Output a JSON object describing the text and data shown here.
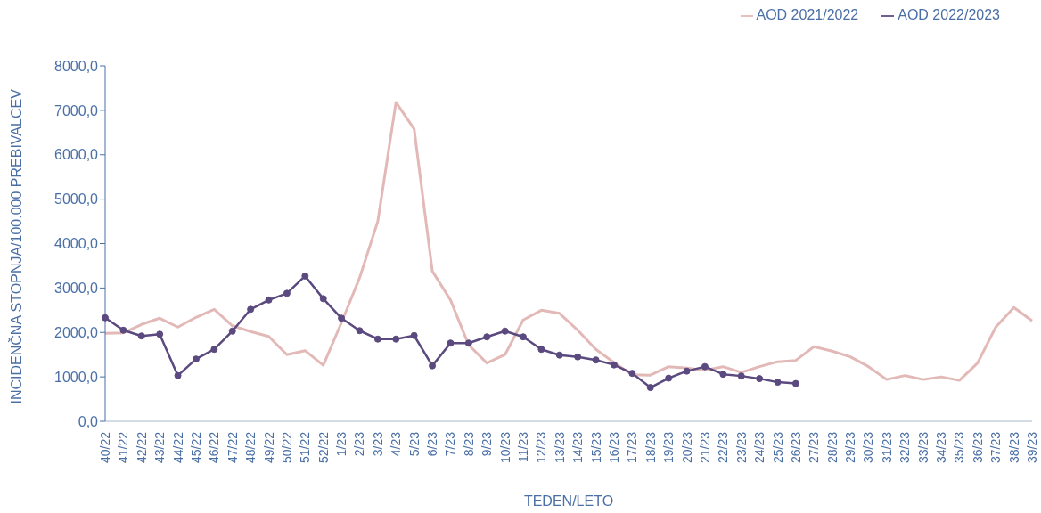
{
  "chart_data": {
    "type": "line",
    "xlabel": "TEDEN/LETO",
    "ylabel": "INCIDENČNA  STOPNJA/100.000  PREBIVALCEV",
    "categories": [
      "40/22",
      "41/22",
      "42/22",
      "43/22",
      "44/22",
      "45/22",
      "46/22",
      "47/22",
      "48/22",
      "49/22",
      "50/22",
      "51/22",
      "52/22",
      "1/23",
      "2/23",
      "3/23",
      "4/23",
      "5/23",
      "6/23",
      "7/23",
      "8/23",
      "9/23",
      "10/23",
      "11/23",
      "12/23",
      "13/23",
      "14/23",
      "15/23",
      "16/23",
      "17/23",
      "18/23",
      "19/23",
      "20/23",
      "21/23",
      "22/23",
      "23/23",
      "24/23",
      "25/23",
      "26/23",
      "27/23",
      "28/23",
      "29/23",
      "30/23",
      "31/23",
      "32/23",
      "33/23",
      "34/23",
      "35/23",
      "36/23",
      "37/23",
      "38/23",
      "39/23"
    ],
    "series": [
      {
        "name": "AOD 2021/2022",
        "color": "#e2b9b7",
        "marker": "none",
        "values": [
          1980,
          1990,
          2180,
          2320,
          2120,
          2340,
          2520,
          2150,
          2020,
          1910,
          1500,
          1590,
          1260,
          2220,
          3230,
          4500,
          7180,
          6580,
          3380,
          2730,
          1720,
          1310,
          1500,
          2280,
          2500,
          2430,
          2050,
          1620,
          1320,
          1050,
          1040,
          1230,
          1200,
          1150,
          1230,
          1100,
          1230,
          1340,
          1370,
          1680,
          1580,
          1450,
          1230,
          940,
          1030,
          940,
          1000,
          920,
          1310,
          2120,
          2560,
          2260
        ]
      },
      {
        "name": "AOD 2022/2023",
        "color": "#5b4a7f",
        "marker": "circle",
        "values": [
          2330,
          2050,
          1920,
          1960,
          1030,
          1400,
          1620,
          2030,
          2520,
          2730,
          2880,
          3270,
          2760,
          2320,
          2040,
          1850,
          1850,
          1930,
          1250,
          1760,
          1760,
          1900,
          2030,
          1900,
          1620,
          1490,
          1450,
          1380,
          1270,
          1080,
          760,
          970,
          1130,
          1230,
          1060,
          1020,
          960,
          880,
          850,
          null,
          null,
          null,
          null,
          null,
          null,
          null,
          null,
          null,
          null,
          null,
          null,
          null
        ]
      }
    ],
    "ylim": [
      0,
      8000
    ],
    "yticks": [
      {
        "value": 0,
        "label": "0,0"
      },
      {
        "value": 1000,
        "label": "1000,0"
      },
      {
        "value": 2000,
        "label": "2000,0"
      },
      {
        "value": 3000,
        "label": "3000,0"
      },
      {
        "value": 4000,
        "label": "4000,0"
      },
      {
        "value": 5000,
        "label": "5000,0"
      },
      {
        "value": 6000,
        "label": "6000,0"
      },
      {
        "value": 7000,
        "label": "7000,0"
      },
      {
        "value": 8000,
        "label": "8000,0"
      }
    ],
    "grid": false,
    "legend": "top right",
    "line_style": "solid"
  }
}
